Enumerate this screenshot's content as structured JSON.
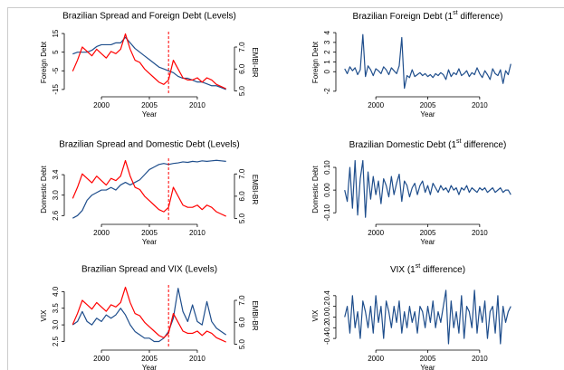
{
  "chart_data": [
    {
      "type": "line",
      "title": "Brazilian Spread and Foreign Debt (Levels)",
      "xlabel": "Year",
      "ylabel": "Foreign Debt",
      "y2label": "EMBI-BR",
      "x": [
        1997,
        1997.5,
        1998,
        1998.5,
        1999,
        1999.5,
        2000,
        2000.5,
        2001,
        2001.5,
        2002,
        2002.5,
        2003,
        2003.5,
        2004,
        2004.5,
        2005,
        2005.5,
        2006,
        2006.5,
        2007,
        2007.5,
        2008,
        2008.5,
        2009,
        2009.5,
        2010,
        2010.5,
        2011,
        2011.5,
        2012,
        2012.5,
        2013
      ],
      "series": [
        {
          "color": "#1f4e8c",
          "values": [
            4,
            5,
            5,
            5,
            6,
            8,
            9,
            9,
            9,
            10,
            10,
            13,
            10,
            7,
            5,
            3,
            1,
            -1,
            -3,
            -4,
            -5,
            -6,
            -8,
            -9,
            -9,
            -10,
            -11,
            -11,
            -12,
            -13,
            -13,
            -14,
            -15
          ]
        },
        {
          "color": "#ff0000",
          "axis": "y2",
          "values": [
            5.9,
            6.4,
            7.0,
            6.8,
            6.6,
            6.9,
            6.7,
            6.5,
            6.8,
            6.7,
            6.9,
            7.6,
            6.9,
            6.4,
            6.3,
            6.0,
            5.8,
            5.6,
            5.4,
            5.3,
            5.5,
            6.4,
            6.0,
            5.6,
            5.5,
            5.5,
            5.6,
            5.4,
            5.6,
            5.5,
            5.3,
            5.2,
            5.1
          ]
        }
      ],
      "vline": 2007,
      "vline_color": "#ff0000",
      "xlim": [
        1996.5,
        2013.5
      ],
      "xticks": [
        2000,
        2005,
        2010
      ],
      "ylim": [
        -17,
        16
      ],
      "yticks": [
        -15,
        -5,
        5,
        15
      ],
      "y2lim": [
        4.9,
        7.7
      ],
      "y2ticks": [
        {
          "value": 5,
          "label": "5.0"
        },
        {
          "value": 6,
          "label": "6.0"
        },
        {
          "value": 7,
          "label": "7.0"
        }
      ]
    },
    {
      "type": "line",
      "title_parts": [
        "Brazilian Foreign Debt (1",
        "st",
        " difference)"
      ],
      "xlabel": "Year",
      "ylabel": "Foreign Debt",
      "x": [
        1997,
        1997.25,
        1997.5,
        1997.75,
        1998,
        1998.25,
        1998.5,
        1998.75,
        1999,
        1999.25,
        1999.5,
        1999.75,
        2000,
        2000.25,
        2000.5,
        2000.75,
        2001,
        2001.25,
        2001.5,
        2001.75,
        2002,
        2002.25,
        2002.5,
        2002.75,
        2003,
        2003.25,
        2003.5,
        2003.75,
        2004,
        2004.25,
        2004.5,
        2004.75,
        2005,
        2005.25,
        2005.5,
        2005.75,
        2006,
        2006.25,
        2006.5,
        2006.75,
        2007,
        2007.25,
        2007.5,
        2007.75,
        2008,
        2008.25,
        2008.5,
        2008.75,
        2009,
        2009.25,
        2009.5,
        2009.75,
        2010,
        2010.25,
        2010.5,
        2010.75,
        2011,
        2011.25,
        2011.5,
        2011.75,
        2012,
        2012.25,
        2012.5,
        2012.75,
        2013
      ],
      "series": [
        {
          "color": "#1f4e8c",
          "values": [
            0.3,
            -0.2,
            0.5,
            0.1,
            0.4,
            -0.3,
            0.2,
            3.8,
            -0.5,
            0.6,
            0.2,
            -0.4,
            0.3,
            0.1,
            -0.2,
            0.5,
            0.2,
            -0.3,
            0.4,
            0.1,
            -0.2,
            0.6,
            3.5,
            -1.7,
            -0.4,
            -0.6,
            0.2,
            -0.5,
            -0.3,
            -0.1,
            -0.4,
            -0.2,
            -0.5,
            -0.3,
            -0.6,
            -0.2,
            -0.4,
            -0.1,
            -0.3,
            -0.8,
            0.2,
            -0.5,
            -0.1,
            -0.3,
            0.3,
            -0.4,
            -0.2,
            0.1,
            -0.5,
            -0.1,
            -0.3,
            0.4,
            -0.2,
            -0.6,
            0.1,
            -0.3,
            -0.8,
            0.3,
            -0.2,
            -0.4,
            0.2,
            -1.2,
            0.1,
            -0.3,
            0.8
          ]
        }
      ],
      "xlim": [
        1996.5,
        2013.5
      ],
      "xticks": [
        2000,
        2005,
        2010
      ],
      "ylim": [
        -2.2,
        4.1
      ],
      "yticks": [
        -2,
        0,
        1,
        2,
        3,
        4
      ]
    },
    {
      "type": "line",
      "title": "Brazilian Spread and Domestic Debt (Levels)",
      "xlabel": "Year",
      "ylabel": "Domestic Debt",
      "y2label": "EMBI-BR",
      "x": [
        1997,
        1997.5,
        1998,
        1998.5,
        1999,
        1999.5,
        2000,
        2000.5,
        2001,
        2001.5,
        2002,
        2002.5,
        2003,
        2003.5,
        2004,
        2004.5,
        2005,
        2005.5,
        2006,
        2006.5,
        2007,
        2007.5,
        2008,
        2008.5,
        2009,
        2009.5,
        2010,
        2010.5,
        2011,
        2011.5,
        2012,
        2012.5,
        2013
      ],
      "series": [
        {
          "color": "#1f4e8c",
          "values": [
            2.55,
            2.6,
            2.7,
            2.9,
            3.0,
            3.05,
            3.1,
            3.1,
            3.15,
            3.1,
            3.2,
            3.25,
            3.2,
            3.25,
            3.3,
            3.4,
            3.5,
            3.55,
            3.6,
            3.62,
            3.6,
            3.62,
            3.63,
            3.65,
            3.64,
            3.66,
            3.65,
            3.67,
            3.66,
            3.67,
            3.68,
            3.67,
            3.66
          ]
        },
        {
          "color": "#ff0000",
          "axis": "y2",
          "values": [
            5.9,
            6.4,
            7.0,
            6.8,
            6.6,
            6.9,
            6.7,
            6.5,
            6.8,
            6.7,
            6.9,
            7.6,
            6.9,
            6.4,
            6.3,
            6.0,
            5.8,
            5.6,
            5.4,
            5.3,
            5.5,
            6.4,
            6.0,
            5.6,
            5.5,
            5.5,
            5.6,
            5.4,
            5.6,
            5.5,
            5.3,
            5.2,
            5.1
          ]
        }
      ],
      "vline": 2007,
      "vline_color": "#ff0000",
      "xlim": [
        1996.5,
        2013.5
      ],
      "xticks": [
        2000,
        2005,
        2010
      ],
      "ylim": [
        2.5,
        3.72
      ],
      "yticks": [
        2.6,
        {
          "value": 3,
          "label": "3.0"
        },
        3.4
      ],
      "y2lim": [
        4.9,
        7.7
      ],
      "y2ticks": [
        {
          "value": 5,
          "label": "5.0"
        },
        {
          "value": 6,
          "label": "6.0"
        },
        {
          "value": 7,
          "label": "7.0"
        }
      ]
    },
    {
      "type": "line",
      "title_parts": [
        "Brazilian Domestic Debt (1",
        "st",
        " difference)"
      ],
      "xlabel": "Year",
      "ylabel": "Domestic Debt",
      "x": [
        1997,
        1997.25,
        1997.5,
        1997.75,
        1998,
        1998.25,
        1998.5,
        1998.75,
        1999,
        1999.25,
        1999.5,
        1999.75,
        2000,
        2000.25,
        2000.5,
        2000.75,
        2001,
        2001.25,
        2001.5,
        2001.75,
        2002,
        2002.25,
        2002.5,
        2002.75,
        2003,
        2003.25,
        2003.5,
        2003.75,
        2004,
        2004.25,
        2004.5,
        2004.75,
        2005,
        2005.25,
        2005.5,
        2005.75,
        2006,
        2006.25,
        2006.5,
        2006.75,
        2007,
        2007.25,
        2007.5,
        2007.75,
        2008,
        2008.25,
        2008.5,
        2008.75,
        2009,
        2009.25,
        2009.5,
        2009.75,
        2010,
        2010.25,
        2010.5,
        2010.75,
        2011,
        2011.25,
        2011.5,
        2011.75,
        2012,
        2012.25,
        2012.5,
        2012.75,
        2013
      ],
      "series": [
        {
          "color": "#1f4e8c",
          "values": [
            0.0,
            -0.05,
            0.1,
            -0.08,
            0.13,
            -0.11,
            0.05,
            0.13,
            -0.12,
            0.08,
            -0.04,
            0.06,
            -0.02,
            0.04,
            -0.06,
            0.05,
            0.02,
            -0.03,
            0.06,
            -0.02,
            0.03,
            0.07,
            -0.05,
            0.04,
            0.02,
            -0.03,
            0.01,
            0.03,
            -0.02,
            0.02,
            0.04,
            -0.01,
            0.02,
            -0.02,
            0.03,
            0.01,
            -0.01,
            0.02,
            0.0,
            0.01,
            -0.01,
            0.02,
            0.0,
            0.01,
            -0.02,
            0.01,
            0.0,
            0.02,
            -0.01,
            0.01,
            0.0,
            -0.01,
            0.01,
            0.0,
            0.01,
            -0.01,
            0.0,
            0.01,
            -0.01,
            0.0,
            0.01,
            -0.01,
            0.0,
            0.0,
            -0.02
          ]
        }
      ],
      "xlim": [
        1996.5,
        2013.5
      ],
      "xticks": [
        2000,
        2005,
        2010
      ],
      "ylim": [
        -0.135,
        0.14
      ],
      "yticks": [
        {
          "value": -0.1,
          "label": "-0.10"
        },
        {
          "value": 0,
          "label": "0.00"
        },
        {
          "value": 0.1,
          "label": "0.10"
        }
      ]
    },
    {
      "type": "line",
      "title": "Brazilian Spread and VIX (Levels)",
      "xlabel": "Year",
      "ylabel": "VIX",
      "y2label": "EMBI-BR",
      "x": [
        1997,
        1997.5,
        1998,
        1998.5,
        1999,
        1999.5,
        2000,
        2000.5,
        2001,
        2001.5,
        2002,
        2002.5,
        2003,
        2003.5,
        2004,
        2004.5,
        2005,
        2005.5,
        2006,
        2006.5,
        2007,
        2007.5,
        2008,
        2008.5,
        2009,
        2009.5,
        2010,
        2010.5,
        2011,
        2011.5,
        2012,
        2012.5,
        2013
      ],
      "series": [
        {
          "color": "#1f4e8c",
          "values": [
            3.0,
            3.1,
            3.4,
            3.1,
            3.0,
            3.2,
            3.1,
            3.3,
            3.2,
            3.3,
            3.5,
            3.3,
            3.0,
            2.8,
            2.7,
            2.6,
            2.6,
            2.5,
            2.5,
            2.6,
            2.8,
            3.2,
            4.1,
            3.4,
            3.1,
            3.6,
            3.1,
            3.0,
            3.7,
            3.1,
            2.9,
            2.8,
            2.7
          ]
        },
        {
          "color": "#ff0000",
          "axis": "y2",
          "values": [
            5.9,
            6.4,
            7.0,
            6.8,
            6.6,
            6.9,
            6.7,
            6.5,
            6.8,
            6.7,
            6.9,
            7.6,
            6.9,
            6.4,
            6.3,
            6.0,
            5.8,
            5.6,
            5.4,
            5.3,
            5.5,
            6.4,
            6.0,
            5.6,
            5.5,
            5.5,
            5.6,
            5.4,
            5.6,
            5.5,
            5.3,
            5.2,
            5.1
          ]
        }
      ],
      "vline": 2007,
      "vline_color": "#ff0000",
      "xlim": [
        1996.5,
        2013.5
      ],
      "xticks": [
        2000,
        2005,
        2010
      ],
      "ylim": [
        2.35,
        4.2
      ],
      "yticks": [
        2.5,
        {
          "value": 3,
          "label": "3.0"
        },
        3.5,
        {
          "value": 4,
          "label": "4.0"
        }
      ],
      "y2lim": [
        4.9,
        7.7
      ],
      "y2ticks": [
        {
          "value": 5,
          "label": "5.0"
        },
        {
          "value": 6,
          "label": "6.0"
        },
        {
          "value": 7,
          "label": "7.0"
        }
      ]
    },
    {
      "type": "line",
      "title_parts": [
        "VIX (1",
        "st",
        " difference)"
      ],
      "xlabel": "Year",
      "ylabel": "VIX",
      "x": [
        1997,
        1997.25,
        1997.5,
        1997.75,
        1998,
        1998.25,
        1998.5,
        1998.75,
        1999,
        1999.25,
        1999.5,
        1999.75,
        2000,
        2000.25,
        2000.5,
        2000.75,
        2001,
        2001.25,
        2001.5,
        2001.75,
        2002,
        2002.25,
        2002.5,
        2002.75,
        2003,
        2003.25,
        2003.5,
        2003.75,
        2004,
        2004.25,
        2004.5,
        2004.75,
        2005,
        2005.25,
        2005.5,
        2005.75,
        2006,
        2006.25,
        2006.5,
        2006.75,
        2007,
        2007.25,
        2007.5,
        2007.75,
        2008,
        2008.25,
        2008.5,
        2008.75,
        2009,
        2009.25,
        2009.5,
        2009.75,
        2010,
        2010.25,
        2010.5,
        2010.75,
        2011,
        2011.25,
        2011.5,
        2011.75,
        2012,
        2012.25,
        2012.5,
        2012.75,
        2013
      ],
      "series": [
        {
          "color": "#1f4e8c",
          "values": [
            0.0,
            0.2,
            -0.3,
            0.4,
            -0.2,
            0.1,
            -0.4,
            0.3,
            0.1,
            -0.2,
            0.2,
            -0.3,
            0.4,
            -0.1,
            0.2,
            -0.4,
            0.3,
            0.1,
            -0.2,
            0.2,
            -0.1,
            0.3,
            -0.3,
            0.1,
            -0.2,
            0.2,
            -0.1,
            0.1,
            -0.3,
            0.2,
            0.1,
            -0.2,
            0.2,
            -0.1,
            0.3,
            -0.2,
            0.1,
            -0.1,
            0.2,
            0.5,
            -0.5,
            0.3,
            -0.2,
            0.1,
            -0.3,
            0.4,
            -0.4,
            0.2,
            0.1,
            -0.2,
            0.5,
            -0.3,
            0.2,
            -0.1,
            0.3,
            -0.4,
            0.1,
            0.2,
            -0.3,
            0.4,
            -0.5,
            0.2,
            -0.1,
            0.1,
            0.2
          ]
        }
      ],
      "xlim": [
        1996.5,
        2013.5
      ],
      "xticks": [
        2000,
        2005,
        2010
      ],
      "ylim": [
        -0.55,
        0.6
      ],
      "yticks": [
        -0.4,
        -0.2,
        {
          "value": 0,
          "label": "0.0"
        },
        0.2,
        0.4
      ]
    }
  ]
}
